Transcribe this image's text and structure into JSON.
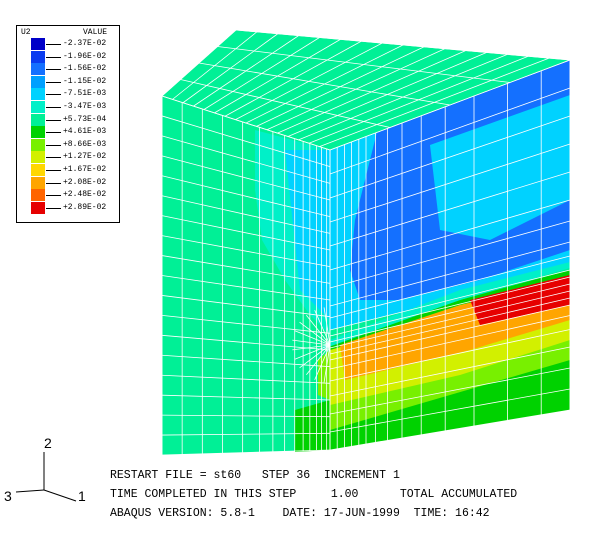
{
  "legend": {
    "variable": "U2",
    "header": "VALUE",
    "levels": [
      {
        "label": "-2.37E-02",
        "color": "#0000c8"
      },
      {
        "label": "-1.96E-02",
        "color": "#0a3cf0"
      },
      {
        "label": "-1.56E-02",
        "color": "#1470ff"
      },
      {
        "label": "-1.15E-02",
        "color": "#00a0ff"
      },
      {
        "label": "-7.51E-03",
        "color": "#00d2ff"
      },
      {
        "label": "-3.47E-03",
        "color": "#00f0c8"
      },
      {
        "label": "+5.73E-04",
        "color": "#00f096"
      },
      {
        "label": "+4.61E-03",
        "color": "#00d200"
      },
      {
        "label": "+8.66E-03",
        "color": "#78f000"
      },
      {
        "label": "+1.27E-02",
        "color": "#d2f000"
      },
      {
        "label": "+1.67E-02",
        "color": "#ffd700"
      },
      {
        "label": "+2.08E-02",
        "color": "#ffa500"
      },
      {
        "label": "+2.48E-02",
        "color": "#ff6400"
      },
      {
        "label": "+2.89E-02",
        "color": "#e60000"
      }
    ]
  },
  "triad": {
    "y": "2",
    "z": "3",
    "x": "1"
  },
  "info": {
    "line1": "RESTART FILE = st60   STEP 36  INCREMENT 1",
    "line2": "TIME COMPLETED IN THIS STEP     1.00      TOTAL ACCUMULATED",
    "line3": "ABAQUS VERSION: 5.8-1    DATE: 17-JUN-1999  TIME: 16:42"
  },
  "colors": {
    "base": "#00f096",
    "cyan": "#00d2ff",
    "light_cyan": "#00f0c8",
    "blue": "#1470ff",
    "green": "#00d200",
    "yellow_green": "#78f000",
    "yellow": "#d2f000",
    "orange": "#ffa500",
    "red": "#e60000",
    "mesh": "#ffffff"
  }
}
